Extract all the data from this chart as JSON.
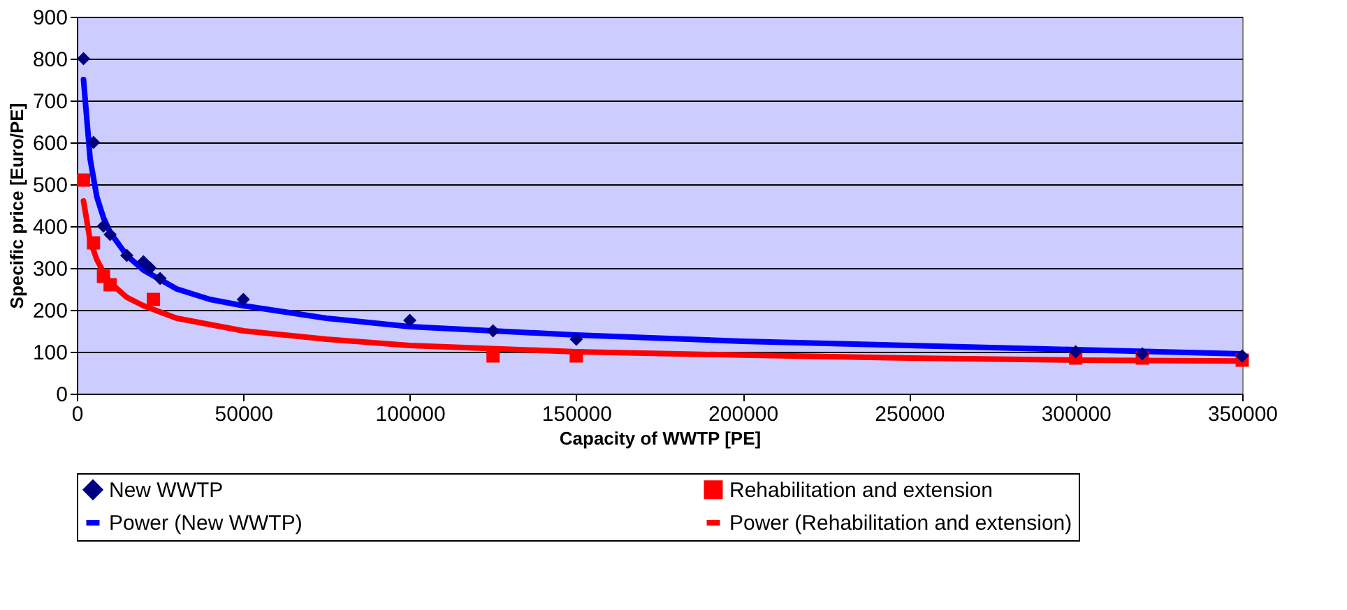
{
  "chart_data": {
    "type": "scatter",
    "xlabel": "Capacity of WWTP [PE]",
    "ylabel": "Specific price [Euro/PE]",
    "xlim": [
      0,
      350000
    ],
    "xticks": [
      0,
      50000,
      100000,
      150000,
      200000,
      250000,
      300000,
      350000
    ],
    "ylim": [
      0,
      900
    ],
    "yticks": [
      0,
      100,
      200,
      300,
      400,
      500,
      600,
      700,
      800,
      900
    ],
    "grid": "y",
    "legend": "bottom",
    "series": [
      {
        "name": "New WWTP",
        "marker": "diamond",
        "color": "#000080",
        "x": [
          2000,
          5000,
          8000,
          10000,
          15000,
          20000,
          22000,
          25000,
          50000,
          100000,
          125000,
          150000,
          300000,
          320000,
          350000
        ],
        "values": [
          800,
          600,
          400,
          380,
          330,
          315,
          300,
          275,
          225,
          175,
          150,
          130,
          100,
          95,
          90
        ]
      },
      {
        "name": "Rehabilitation and extension",
        "marker": "square",
        "color": "#ff0000",
        "x": [
          2000,
          5000,
          8000,
          10000,
          23000,
          125000,
          150000,
          300000,
          320000,
          350000
        ],
        "values": [
          510,
          360,
          280,
          260,
          225,
          90,
          90,
          85,
          85,
          80
        ]
      },
      {
        "name": "Power (New WWTP)",
        "type": "line",
        "line_style": "solid",
        "color": "#0000ff",
        "x": [
          2000,
          4000,
          6000,
          8000,
          10000,
          15000,
          20000,
          30000,
          40000,
          50000,
          75000,
          100000,
          150000,
          200000,
          250000,
          300000,
          350000
        ],
        "values": [
          750,
          560,
          470,
          420,
          385,
          330,
          295,
          250,
          225,
          210,
          180,
          160,
          140,
          125,
          115,
          105,
          95
        ]
      },
      {
        "name": "Power (Rehabilitation and extension)",
        "type": "line",
        "line_style": "solid",
        "color": "#ff0000",
        "x": [
          2000,
          4000,
          6000,
          8000,
          10000,
          15000,
          20000,
          30000,
          40000,
          50000,
          75000,
          100000,
          150000,
          200000,
          250000,
          300000,
          350000
        ],
        "values": [
          460,
          365,
          320,
          290,
          265,
          230,
          210,
          180,
          165,
          150,
          130,
          115,
          100,
          92,
          85,
          80,
          78
        ]
      }
    ]
  }
}
